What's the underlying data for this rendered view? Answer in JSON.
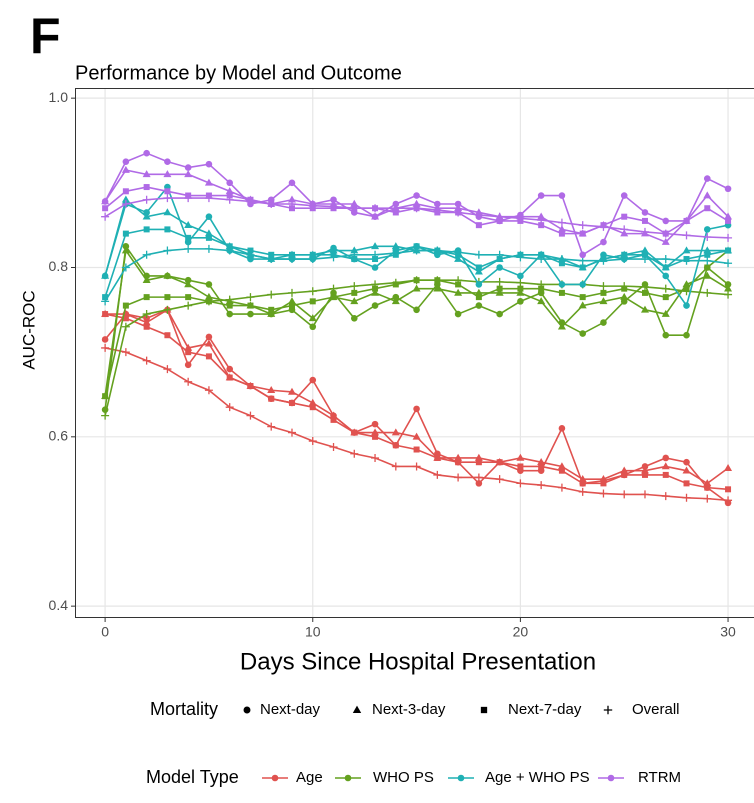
{
  "chart_data": {
    "type": "line",
    "panel_label": "F",
    "title": "Performance by Model and Outcome",
    "xlabel": "Days Since Hospital Presentation",
    "ylabel": "AUC-ROC",
    "x": [
      0,
      1,
      2,
      3,
      4,
      5,
      6,
      7,
      8,
      9,
      10,
      11,
      12,
      13,
      14,
      15,
      16,
      17,
      18,
      19,
      20,
      21,
      22,
      23,
      24,
      25,
      26,
      27,
      28,
      29,
      30
    ],
    "xlim": [
      -1.45,
      31.25
    ],
    "xticks": [
      0,
      10,
      20,
      30
    ],
    "ylim": [
      0.386,
      1.012
    ],
    "yticks": [
      0.4,
      0.6,
      0.8,
      {
        "value": 1,
        "label": "1.0"
      }
    ],
    "grid": true,
    "shape_legend": {
      "title": "Mortality",
      "items": [
        {
          "name": "Next-day",
          "marker": "circle"
        },
        {
          "name": "Next-3-day",
          "marker": "triangle"
        },
        {
          "name": "Next-7-day",
          "marker": "square"
        },
        {
          "name": "Overall",
          "marker": "plus"
        }
      ]
    },
    "color_legend_title": "Model Type",
    "models": [
      {
        "name": "Age",
        "color": "#e0524f",
        "values_by_outcome": [
          [
            0.715,
            0.745,
            0.74,
            0.75,
            0.685,
            0.718,
            0.68,
            0.66,
            0.645,
            0.64,
            0.667,
            0.625,
            0.605,
            0.615,
            0.59,
            0.633,
            0.58,
            0.57,
            0.545,
            0.57,
            0.56,
            0.56,
            0.61,
            0.545,
            0.548,
            0.555,
            0.565,
            0.575,
            0.57,
            0.54,
            0.522
          ],
          [
            0.745,
            0.745,
            0.735,
            0.75,
            0.705,
            0.71,
            0.67,
            0.66,
            0.655,
            0.653,
            0.64,
            0.625,
            0.605,
            0.605,
            0.605,
            0.6,
            0.575,
            0.575,
            0.575,
            0.57,
            0.575,
            0.57,
            0.565,
            0.55,
            0.55,
            0.56,
            0.56,
            0.565,
            0.56,
            0.545,
            0.563
          ],
          [
            0.745,
            0.74,
            0.73,
            0.72,
            0.7,
            0.695,
            0.67,
            0.66,
            0.645,
            0.64,
            0.635,
            0.62,
            0.605,
            0.6,
            0.59,
            0.585,
            0.575,
            0.57,
            0.57,
            0.57,
            0.565,
            0.565,
            0.56,
            0.545,
            0.545,
            0.555,
            0.555,
            0.555,
            0.545,
            0.54,
            0.538
          ],
          [
            0.705,
            0.7,
            0.69,
            0.68,
            0.665,
            0.655,
            0.635,
            0.625,
            0.612,
            0.605,
            0.595,
            0.588,
            0.58,
            0.575,
            0.565,
            0.565,
            0.555,
            0.552,
            0.552,
            0.55,
            0.545,
            0.543,
            0.54,
            0.535,
            0.533,
            0.532,
            0.532,
            0.53,
            0.528,
            0.527,
            0.525
          ]
        ]
      },
      {
        "name": "WHO PS",
        "color": "#64a11f",
        "values_by_outcome": [
          [
            0.632,
            0.825,
            0.79,
            0.79,
            0.785,
            0.78,
            0.745,
            0.745,
            0.745,
            0.75,
            0.73,
            0.77,
            0.74,
            0.755,
            0.765,
            0.75,
            0.78,
            0.745,
            0.755,
            0.745,
            0.76,
            0.77,
            0.735,
            0.722,
            0.735,
            0.76,
            0.78,
            0.72,
            0.72,
            0.8,
            0.78
          ],
          [
            0.648,
            0.82,
            0.785,
            0.79,
            0.78,
            0.765,
            0.76,
            0.755,
            0.745,
            0.76,
            0.74,
            0.765,
            0.76,
            0.77,
            0.76,
            0.775,
            0.775,
            0.77,
            0.77,
            0.77,
            0.77,
            0.76,
            0.73,
            0.755,
            0.76,
            0.765,
            0.75,
            0.745,
            0.78,
            0.79,
            0.775
          ],
          [
            0.648,
            0.755,
            0.765,
            0.765,
            0.765,
            0.76,
            0.755,
            0.755,
            0.75,
            0.755,
            0.76,
            0.765,
            0.77,
            0.775,
            0.78,
            0.785,
            0.785,
            0.78,
            0.765,
            0.775,
            0.775,
            0.775,
            0.77,
            0.765,
            0.77,
            0.775,
            0.77,
            0.765,
            0.775,
            0.8,
            0.82
          ],
          [
            0.625,
            0.73,
            0.745,
            0.75,
            0.755,
            0.76,
            0.762,
            0.765,
            0.768,
            0.77,
            0.772,
            0.775,
            0.778,
            0.78,
            0.782,
            0.785,
            0.785,
            0.785,
            0.783,
            0.783,
            0.782,
            0.78,
            0.78,
            0.78,
            0.778,
            0.778,
            0.777,
            0.775,
            0.772,
            0.77,
            0.768
          ]
        ]
      },
      {
        "name": "Age + WHO PS",
        "color": "#1fb0b4",
        "values_by_outcome": [
          [
            0.79,
            0.875,
            0.865,
            0.895,
            0.83,
            0.86,
            0.82,
            0.81,
            0.81,
            0.81,
            0.81,
            0.823,
            0.81,
            0.8,
            0.82,
            0.825,
            0.815,
            0.82,
            0.78,
            0.8,
            0.79,
            0.815,
            0.78,
            0.78,
            0.815,
            0.81,
            0.815,
            0.79,
            0.755,
            0.845,
            0.85
          ],
          [
            0.79,
            0.88,
            0.86,
            0.865,
            0.85,
            0.84,
            0.825,
            0.815,
            0.81,
            0.815,
            0.815,
            0.82,
            0.82,
            0.825,
            0.825,
            0.82,
            0.82,
            0.81,
            0.795,
            0.81,
            0.815,
            0.815,
            0.81,
            0.8,
            0.81,
            0.815,
            0.82,
            0.8,
            0.82,
            0.82,
            0.82
          ],
          [
            0.765,
            0.84,
            0.845,
            0.845,
            0.835,
            0.835,
            0.825,
            0.82,
            0.815,
            0.815,
            0.815,
            0.815,
            0.81,
            0.81,
            0.815,
            0.825,
            0.82,
            0.815,
            0.8,
            0.81,
            0.815,
            0.815,
            0.805,
            0.8,
            0.81,
            0.815,
            0.815,
            0.8,
            0.81,
            0.815,
            0.82
          ],
          [
            0.76,
            0.8,
            0.815,
            0.82,
            0.822,
            0.822,
            0.82,
            0.815,
            0.81,
            0.81,
            0.81,
            0.812,
            0.815,
            0.815,
            0.817,
            0.82,
            0.82,
            0.818,
            0.815,
            0.815,
            0.812,
            0.81,
            0.81,
            0.808,
            0.808,
            0.81,
            0.81,
            0.81,
            0.808,
            0.808,
            0.805
          ]
        ]
      },
      {
        "name": "RTRM",
        "color": "#b06ae6",
        "values_by_outcome": [
          [
            0.878,
            0.925,
            0.935,
            0.925,
            0.918,
            0.922,
            0.9,
            0.875,
            0.88,
            0.9,
            0.875,
            0.88,
            0.865,
            0.86,
            0.875,
            0.885,
            0.875,
            0.875,
            0.86,
            0.855,
            0.862,
            0.885,
            0.885,
            0.815,
            0.83,
            0.885,
            0.865,
            0.855,
            0.855,
            0.905,
            0.893
          ],
          [
            0.878,
            0.915,
            0.91,
            0.91,
            0.91,
            0.9,
            0.89,
            0.88,
            0.875,
            0.88,
            0.875,
            0.875,
            0.875,
            0.86,
            0.87,
            0.875,
            0.87,
            0.87,
            0.865,
            0.86,
            0.86,
            0.86,
            0.845,
            0.84,
            0.85,
            0.84,
            0.84,
            0.83,
            0.855,
            0.885,
            0.86
          ],
          [
            0.87,
            0.89,
            0.895,
            0.89,
            0.885,
            0.885,
            0.885,
            0.88,
            0.875,
            0.87,
            0.87,
            0.87,
            0.87,
            0.87,
            0.865,
            0.87,
            0.865,
            0.865,
            0.85,
            0.855,
            0.855,
            0.85,
            0.84,
            0.84,
            0.85,
            0.86,
            0.855,
            0.84,
            0.855,
            0.87,
            0.855
          ],
          [
            0.86,
            0.875,
            0.88,
            0.882,
            0.882,
            0.882,
            0.88,
            0.878,
            0.875,
            0.875,
            0.873,
            0.872,
            0.87,
            0.87,
            0.87,
            0.87,
            0.868,
            0.865,
            0.862,
            0.86,
            0.858,
            0.856,
            0.853,
            0.85,
            0.848,
            0.845,
            0.842,
            0.84,
            0.838,
            0.836,
            0.835
          ]
        ]
      }
    ]
  }
}
